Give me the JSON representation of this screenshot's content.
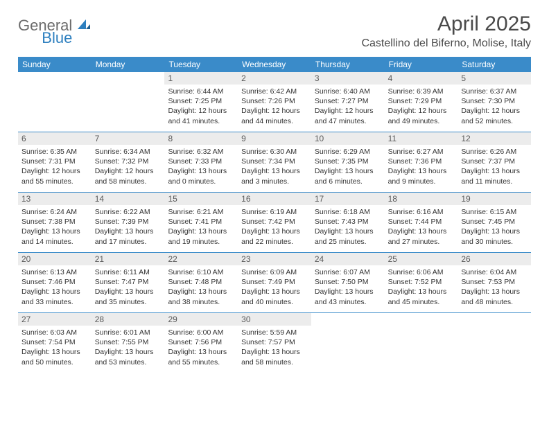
{
  "brand": {
    "text1": "General",
    "text2": "Blue"
  },
  "title": "April 2025",
  "location": "Castellino del Biferno, Molise, Italy",
  "colors": {
    "header_bg": "#3a8bc9",
    "header_text": "#ffffff",
    "daynum_bg": "#ececec",
    "daynum_text": "#595959",
    "row_border": "#3a8bc9",
    "brand_gray": "#6b6b6b",
    "brand_blue": "#2d7fbf",
    "body_text": "#333333",
    "title_text": "#4a4a4a"
  },
  "typography": {
    "month_title_fontsize": 30,
    "location_fontsize": 16,
    "dayheader_fontsize": 12,
    "daynum_fontsize": 12,
    "cell_fontsize": 10.5,
    "logo_fontsize": 22
  },
  "day_headers": [
    "Sunday",
    "Monday",
    "Tuesday",
    "Wednesday",
    "Thursday",
    "Friday",
    "Saturday"
  ],
  "weeks": [
    [
      {
        "n": "",
        "sr": "",
        "ss": "",
        "dl": ""
      },
      {
        "n": "",
        "sr": "",
        "ss": "",
        "dl": ""
      },
      {
        "n": "1",
        "sr": "Sunrise: 6:44 AM",
        "ss": "Sunset: 7:25 PM",
        "dl": "Daylight: 12 hours and 41 minutes."
      },
      {
        "n": "2",
        "sr": "Sunrise: 6:42 AM",
        "ss": "Sunset: 7:26 PM",
        "dl": "Daylight: 12 hours and 44 minutes."
      },
      {
        "n": "3",
        "sr": "Sunrise: 6:40 AM",
        "ss": "Sunset: 7:27 PM",
        "dl": "Daylight: 12 hours and 47 minutes."
      },
      {
        "n": "4",
        "sr": "Sunrise: 6:39 AM",
        "ss": "Sunset: 7:29 PM",
        "dl": "Daylight: 12 hours and 49 minutes."
      },
      {
        "n": "5",
        "sr": "Sunrise: 6:37 AM",
        "ss": "Sunset: 7:30 PM",
        "dl": "Daylight: 12 hours and 52 minutes."
      }
    ],
    [
      {
        "n": "6",
        "sr": "Sunrise: 6:35 AM",
        "ss": "Sunset: 7:31 PM",
        "dl": "Daylight: 12 hours and 55 minutes."
      },
      {
        "n": "7",
        "sr": "Sunrise: 6:34 AM",
        "ss": "Sunset: 7:32 PM",
        "dl": "Daylight: 12 hours and 58 minutes."
      },
      {
        "n": "8",
        "sr": "Sunrise: 6:32 AM",
        "ss": "Sunset: 7:33 PM",
        "dl": "Daylight: 13 hours and 0 minutes."
      },
      {
        "n": "9",
        "sr": "Sunrise: 6:30 AM",
        "ss": "Sunset: 7:34 PM",
        "dl": "Daylight: 13 hours and 3 minutes."
      },
      {
        "n": "10",
        "sr": "Sunrise: 6:29 AM",
        "ss": "Sunset: 7:35 PM",
        "dl": "Daylight: 13 hours and 6 minutes."
      },
      {
        "n": "11",
        "sr": "Sunrise: 6:27 AM",
        "ss": "Sunset: 7:36 PM",
        "dl": "Daylight: 13 hours and 9 minutes."
      },
      {
        "n": "12",
        "sr": "Sunrise: 6:26 AM",
        "ss": "Sunset: 7:37 PM",
        "dl": "Daylight: 13 hours and 11 minutes."
      }
    ],
    [
      {
        "n": "13",
        "sr": "Sunrise: 6:24 AM",
        "ss": "Sunset: 7:38 PM",
        "dl": "Daylight: 13 hours and 14 minutes."
      },
      {
        "n": "14",
        "sr": "Sunrise: 6:22 AM",
        "ss": "Sunset: 7:39 PM",
        "dl": "Daylight: 13 hours and 17 minutes."
      },
      {
        "n": "15",
        "sr": "Sunrise: 6:21 AM",
        "ss": "Sunset: 7:41 PM",
        "dl": "Daylight: 13 hours and 19 minutes."
      },
      {
        "n": "16",
        "sr": "Sunrise: 6:19 AM",
        "ss": "Sunset: 7:42 PM",
        "dl": "Daylight: 13 hours and 22 minutes."
      },
      {
        "n": "17",
        "sr": "Sunrise: 6:18 AM",
        "ss": "Sunset: 7:43 PM",
        "dl": "Daylight: 13 hours and 25 minutes."
      },
      {
        "n": "18",
        "sr": "Sunrise: 6:16 AM",
        "ss": "Sunset: 7:44 PM",
        "dl": "Daylight: 13 hours and 27 minutes."
      },
      {
        "n": "19",
        "sr": "Sunrise: 6:15 AM",
        "ss": "Sunset: 7:45 PM",
        "dl": "Daylight: 13 hours and 30 minutes."
      }
    ],
    [
      {
        "n": "20",
        "sr": "Sunrise: 6:13 AM",
        "ss": "Sunset: 7:46 PM",
        "dl": "Daylight: 13 hours and 33 minutes."
      },
      {
        "n": "21",
        "sr": "Sunrise: 6:11 AM",
        "ss": "Sunset: 7:47 PM",
        "dl": "Daylight: 13 hours and 35 minutes."
      },
      {
        "n": "22",
        "sr": "Sunrise: 6:10 AM",
        "ss": "Sunset: 7:48 PM",
        "dl": "Daylight: 13 hours and 38 minutes."
      },
      {
        "n": "23",
        "sr": "Sunrise: 6:09 AM",
        "ss": "Sunset: 7:49 PM",
        "dl": "Daylight: 13 hours and 40 minutes."
      },
      {
        "n": "24",
        "sr": "Sunrise: 6:07 AM",
        "ss": "Sunset: 7:50 PM",
        "dl": "Daylight: 13 hours and 43 minutes."
      },
      {
        "n": "25",
        "sr": "Sunrise: 6:06 AM",
        "ss": "Sunset: 7:52 PM",
        "dl": "Daylight: 13 hours and 45 minutes."
      },
      {
        "n": "26",
        "sr": "Sunrise: 6:04 AM",
        "ss": "Sunset: 7:53 PM",
        "dl": "Daylight: 13 hours and 48 minutes."
      }
    ],
    [
      {
        "n": "27",
        "sr": "Sunrise: 6:03 AM",
        "ss": "Sunset: 7:54 PM",
        "dl": "Daylight: 13 hours and 50 minutes."
      },
      {
        "n": "28",
        "sr": "Sunrise: 6:01 AM",
        "ss": "Sunset: 7:55 PM",
        "dl": "Daylight: 13 hours and 53 minutes."
      },
      {
        "n": "29",
        "sr": "Sunrise: 6:00 AM",
        "ss": "Sunset: 7:56 PM",
        "dl": "Daylight: 13 hours and 55 minutes."
      },
      {
        "n": "30",
        "sr": "Sunrise: 5:59 AM",
        "ss": "Sunset: 7:57 PM",
        "dl": "Daylight: 13 hours and 58 minutes."
      },
      {
        "n": "",
        "sr": "",
        "ss": "",
        "dl": ""
      },
      {
        "n": "",
        "sr": "",
        "ss": "",
        "dl": ""
      },
      {
        "n": "",
        "sr": "",
        "ss": "",
        "dl": ""
      }
    ]
  ]
}
